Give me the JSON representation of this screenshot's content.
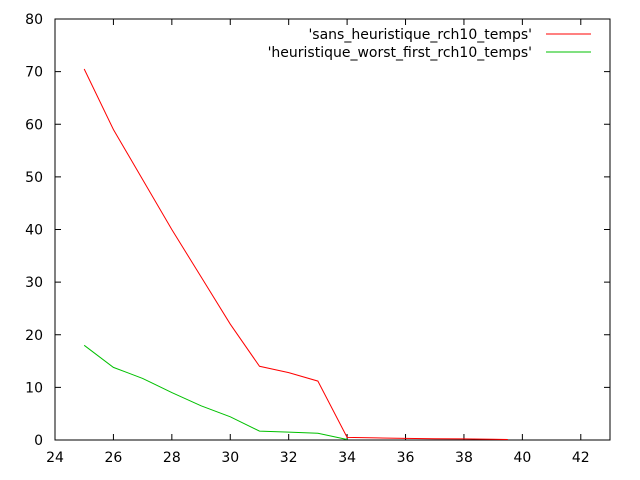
{
  "chart_data": {
    "type": "line",
    "xlim": [
      24,
      43
    ],
    "ylim": [
      0,
      80
    ],
    "xticks": [
      24,
      26,
      28,
      30,
      32,
      34,
      36,
      38,
      40,
      42
    ],
    "yticks": [
      0,
      10,
      20,
      30,
      40,
      50,
      60,
      70,
      80
    ],
    "grid": false,
    "legend_position": "top-right",
    "series": [
      {
        "name": "'sans_heuristique_rch10_temps'",
        "color": "#ff0000",
        "x": [
          25,
          26,
          27,
          28,
          29,
          30,
          31,
          32,
          33,
          34,
          35,
          36,
          37,
          38,
          39,
          39.5
        ],
        "y": [
          70.5,
          59,
          49.5,
          40,
          31,
          22,
          14,
          12.8,
          11.2,
          0.5,
          0.4,
          0.3,
          0.25,
          0.2,
          0.15,
          0.1
        ]
      },
      {
        "name": "'heuristique_worst_first_rch10_temps'",
        "color": "#00c000",
        "x": [
          25,
          26,
          27,
          28,
          29,
          30,
          31,
          32,
          33,
          34
        ],
        "y": [
          18,
          13.8,
          11.7,
          9,
          6.5,
          4.4,
          1.7,
          1.5,
          1.3,
          0.1
        ]
      }
    ]
  }
}
